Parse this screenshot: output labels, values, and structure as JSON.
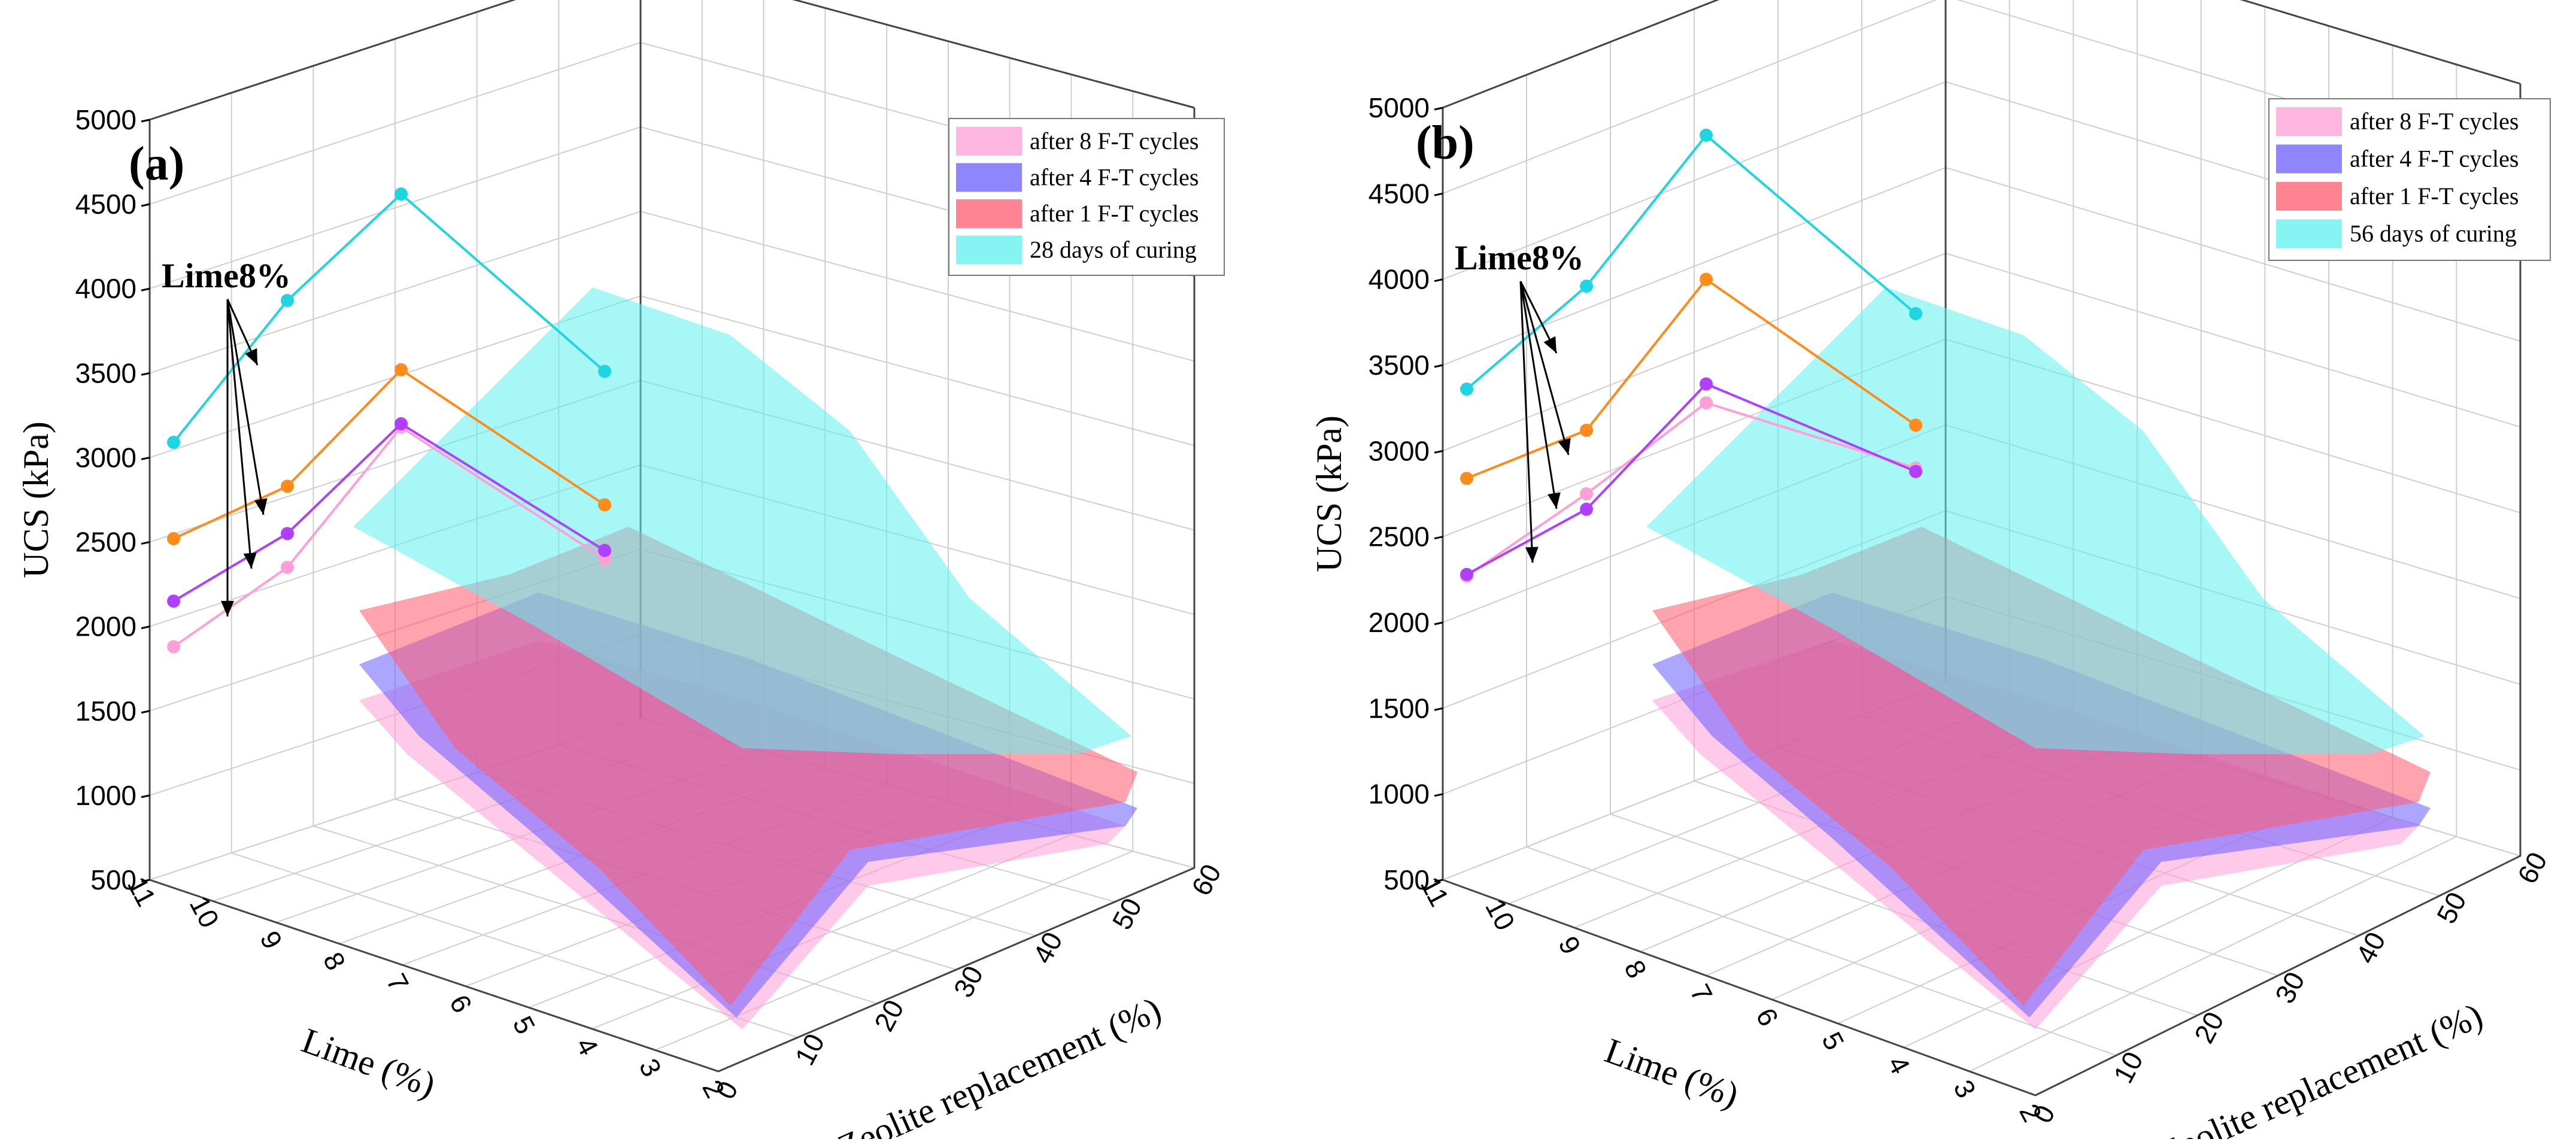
{
  "chart_data": [
    {
      "type": "surface3d",
      "panel_label": "(a)",
      "annotation": "Lime8%",
      "xlabel": "Lime (%)",
      "ylabel": "Zeolite replacement (%)",
      "zlabel": "UCS (kPa)",
      "x_ticks": [
        "11",
        "10",
        "9",
        "8",
        "7",
        "6",
        "5",
        "4",
        "3",
        "2"
      ],
      "y_ticks": [
        "0",
        "10",
        "20",
        "30",
        "40",
        "50",
        "60"
      ],
      "z_ticks": [
        "500",
        "1000",
        "1500",
        "2000",
        "2500",
        "3000",
        "3500",
        "4000",
        "4500",
        "5000"
      ],
      "zlim": [
        500,
        5000
      ],
      "series": [
        {
          "name": "after 8 F-T cycles",
          "color": "#ff9fd8",
          "zeolite": [
            0,
            10,
            20,
            30
          ],
          "lime8_values": [
            1880,
            2350,
            3180,
            2400
          ]
        },
        {
          "name": "after 4 F-T cycles",
          "color": "#6a5cff",
          "zeolite": [
            0,
            10,
            20,
            30
          ],
          "lime8_values": [
            2150,
            2550,
            3200,
            2450
          ]
        },
        {
          "name": "after 1 F-T cycles",
          "color": "#ff5a6e",
          "zeolite": [
            0,
            10,
            20,
            30
          ],
          "lime8_values": [
            2520,
            2830,
            3520,
            2720
          ]
        },
        {
          "name": "28 days of curing",
          "color": "#5ff0f0",
          "zeolite": [
            0,
            10,
            20,
            30
          ],
          "lime8_values": [
            3090,
            3930,
            4560,
            3510
          ]
        }
      ]
    },
    {
      "type": "surface3d",
      "panel_label": "(b)",
      "annotation": "Lime8%",
      "xlabel": "Lime (%)",
      "ylabel": "Zeolite replacement (%)",
      "zlabel": "UCS (kPa)",
      "x_ticks": [
        "11",
        "10",
        "9",
        "8",
        "7",
        "6",
        "5",
        "4",
        "3",
        "2"
      ],
      "y_ticks": [
        "0",
        "10",
        "20",
        "30",
        "40",
        "50",
        "60"
      ],
      "z_ticks": [
        "500",
        "1000",
        "1500",
        "2000",
        "2500",
        "3000",
        "3500",
        "4000",
        "4500",
        "5000"
      ],
      "zlim": [
        500,
        5000
      ],
      "series": [
        {
          "name": "after 8 F-T cycles",
          "color": "#ff9fd8",
          "zeolite": [
            0,
            10,
            20,
            30
          ],
          "lime8_values": [
            2270,
            2750,
            3280,
            2900
          ]
        },
        {
          "name": "after 4 F-T cycles",
          "color": "#6a5cff",
          "zeolite": [
            0,
            10,
            20,
            30
          ],
          "lime8_values": [
            2280,
            2660,
            3390,
            2880
          ]
        },
        {
          "name": "after 1 F-T cycles",
          "color": "#ff5a6e",
          "zeolite": [
            0,
            10,
            20,
            30
          ],
          "lime8_values": [
            2840,
            3120,
            4000,
            3150
          ]
        },
        {
          "name": "56 days of curing",
          "color": "#5ff0f0",
          "zeolite": [
            0,
            10,
            20,
            30
          ],
          "lime8_values": [
            3360,
            3960,
            4840,
            3800
          ]
        }
      ]
    }
  ]
}
